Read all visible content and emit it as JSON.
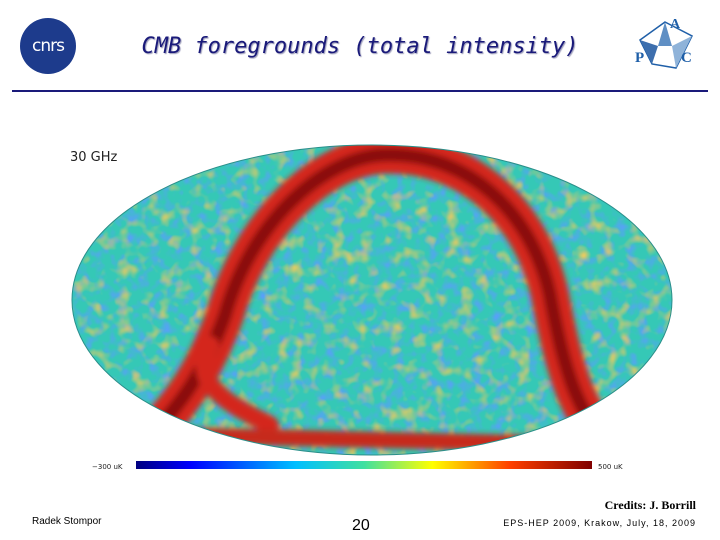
{
  "header": {
    "logo_left": "cnrs",
    "title": "CMB foregrounds (total intensity)",
    "logo_right": {
      "letters": [
        "A",
        "P",
        "C"
      ]
    }
  },
  "map": {
    "frequency_label": "30 GHz",
    "scale_min_label": "−300 uK",
    "scale_max_label": "500 uK"
  },
  "credits": "Credits: J. Borrill",
  "footer": {
    "author": "Radek Stompor",
    "page_number": "20",
    "event": "EPS-HEP 2009, Krakow, July, 18, 2009"
  },
  "colors": {
    "title": "#1a1a7a",
    "rule": "#1a1a7a",
    "cnrs_logo": "#1d3b8c",
    "apc_logo": "#1f5fa8"
  }
}
